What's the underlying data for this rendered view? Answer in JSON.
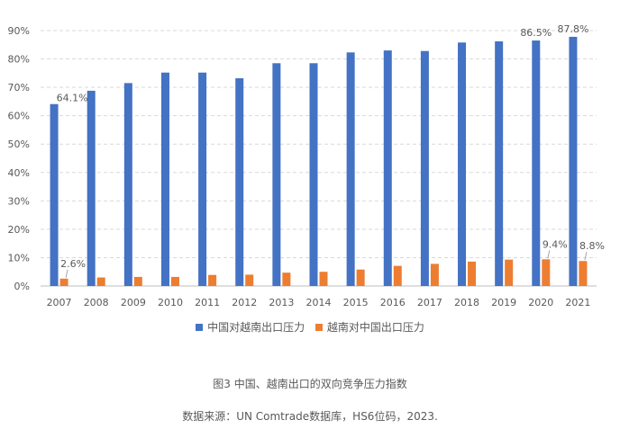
{
  "chart_data": {
    "type": "bar",
    "categories": [
      "2007",
      "2008",
      "2009",
      "2010",
      "2011",
      "2012",
      "2013",
      "2014",
      "2015",
      "2016",
      "2017",
      "2018",
      "2019",
      "2020",
      "2021"
    ],
    "series": [
      {
        "name": "中国对越南出口压力",
        "color": "#4472C4",
        "values": [
          64.1,
          68.8,
          71.5,
          75.2,
          75.2,
          73.2,
          78.5,
          78.5,
          82.3,
          83.0,
          82.8,
          85.8,
          86.2,
          86.5,
          87.8
        ]
      },
      {
        "name": "越南对中国出口压力",
        "color": "#ED7D31",
        "values": [
          2.6,
          3.0,
          3.2,
          3.2,
          3.9,
          4.0,
          4.7,
          5.0,
          5.8,
          7.1,
          7.8,
          8.6,
          9.3,
          9.4,
          8.8
        ]
      }
    ],
    "data_labels": [
      {
        "series": 0,
        "index": 0,
        "text": "64.1%"
      },
      {
        "series": 1,
        "index": 0,
        "text": "2.6%"
      },
      {
        "series": 0,
        "index": 13,
        "text": "86.5%"
      },
      {
        "series": 0,
        "index": 14,
        "text": "87.8%"
      },
      {
        "series": 1,
        "index": 13,
        "text": "9.4%"
      },
      {
        "series": 1,
        "index": 14,
        "text": "8.8%"
      }
    ],
    "y_ticks": [
      "0%",
      "10%",
      "20%",
      "30%",
      "40%",
      "50%",
      "60%",
      "70%",
      "80%",
      "90%"
    ],
    "ylim": [
      0,
      90
    ],
    "grid": true,
    "legend_position": "bottom"
  },
  "caption": {
    "title": "图3 中国、越南出口的双向竞争压力指数",
    "source": "数据来源：UN Comtrade数据库，HS6位码，2023."
  }
}
